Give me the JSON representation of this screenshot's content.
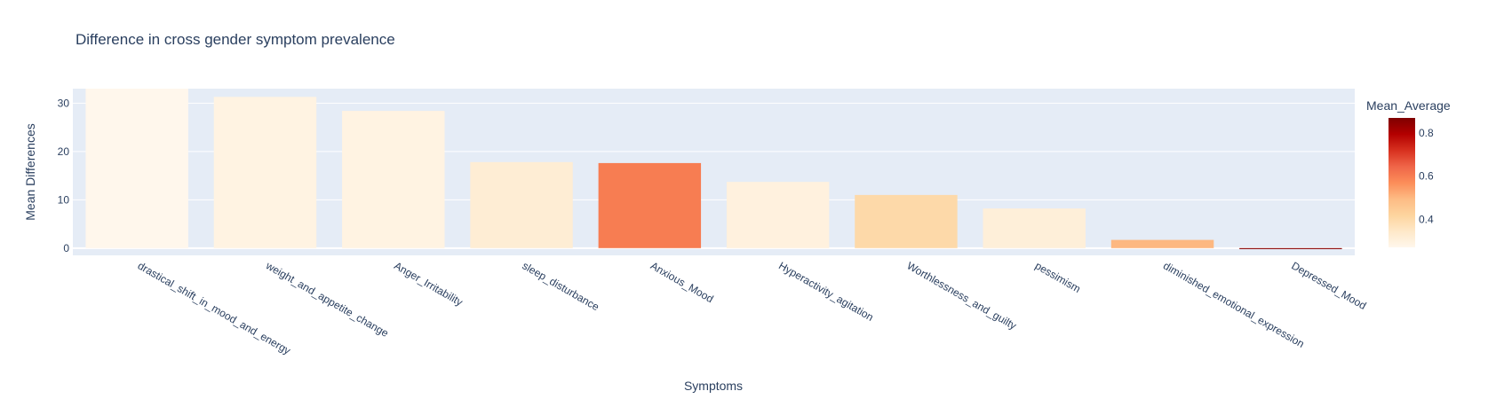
{
  "chart_data": {
    "type": "bar",
    "title": "Difference in cross gender symptom prevalence",
    "xlabel": "Symptoms",
    "ylabel": "Mean Differences",
    "ylim": [
      -1.5,
      33
    ],
    "yticks": [
      0,
      10,
      20,
      30
    ],
    "grid": true,
    "categories": [
      "drastical_shift_in_mood_and_energy",
      "weight_and_appetite_change",
      "Anger_Irritability",
      "sleep_disturbance",
      "Anxious_Mood",
      "Hyperactivity_agitation",
      "Worthlessness_and_guilty",
      "pessimism",
      "diminished_emotional_expression",
      "Depressed_Mood"
    ],
    "values": [
      33.5,
      31.3,
      28.4,
      17.8,
      17.6,
      13.7,
      11.0,
      8.2,
      1.7,
      -0.2
    ],
    "color_values": [
      0.27,
      0.29,
      0.29,
      0.32,
      0.6,
      0.3,
      0.4,
      0.31,
      0.5,
      0.86
    ],
    "colorbar": {
      "title": "Mean_Average",
      "range": [
        0.27,
        0.87
      ],
      "ticks": [
        0.4,
        0.6,
        0.8
      ],
      "colors": [
        "#fff7ec",
        "#fee8c8",
        "#fdd49e",
        "#fdbb84",
        "#fc8d59",
        "#ef6548",
        "#d7301f",
        "#b30000",
        "#7f0000"
      ]
    }
  }
}
